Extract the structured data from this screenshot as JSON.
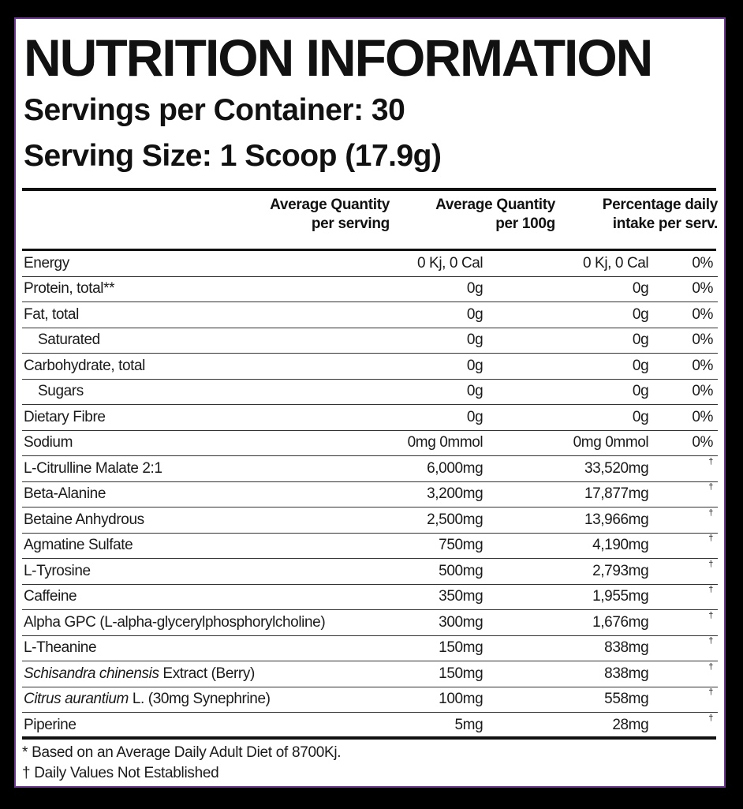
{
  "title": "NUTRITION INFORMATION",
  "servings_per_container": "Servings per Container: 30",
  "serving_size": "Serving Size: 1 Scoop (17.9g)",
  "headers": {
    "col1_line1": "Average Quantity",
    "col1_line2": "per serving",
    "col2_line1": "Average Quantity",
    "col2_line2": "per 100g",
    "col3_line1": "Percentage daily",
    "col3_line2": "intake per serv."
  },
  "rows": [
    {
      "name": "Energy",
      "per_serving": "0 Kj, 0 Cal",
      "per_100g": "0 Kj, 0 Cal",
      "daily": "0%"
    },
    {
      "name": "Protein, total**",
      "per_serving": "0g",
      "per_100g": "0g",
      "daily": "0%"
    },
    {
      "name": "Fat, total",
      "per_serving": "0g",
      "per_100g": "0g",
      "daily": "0%"
    },
    {
      "name": "Saturated",
      "per_serving": "0g",
      "per_100g": "0g",
      "daily": "0%",
      "indent": true
    },
    {
      "name": "Carbohydrate, total",
      "per_serving": "0g",
      "per_100g": "0g",
      "daily": "0%"
    },
    {
      "name": "Sugars",
      "per_serving": "0g",
      "per_100g": "0g",
      "daily": "0%",
      "indent": true
    },
    {
      "name": "Dietary Fibre",
      "per_serving": "0g",
      "per_100g": "0g",
      "daily": "0%"
    },
    {
      "name": "Sodium",
      "per_serving": "0mg 0mmol",
      "per_100g": "0mg 0mmol",
      "daily": "0%"
    },
    {
      "name": "L-Citrulline Malate 2:1",
      "per_serving": "6,000mg",
      "per_100g": "33,520mg",
      "daily": "†"
    },
    {
      "name": "Beta-Alanine",
      "per_serving": "3,200mg",
      "per_100g": "17,877mg",
      "daily": "†"
    },
    {
      "name": "Betaine Anhydrous",
      "per_serving": "2,500mg",
      "per_100g": "13,966mg",
      "daily": "†"
    },
    {
      "name": "Agmatine Sulfate",
      "per_serving": "750mg",
      "per_100g": "4,190mg",
      "daily": "†"
    },
    {
      "name": "L-Tyrosine",
      "per_serving": "500mg",
      "per_100g": "2,793mg",
      "daily": "†"
    },
    {
      "name": "Caffeine",
      "per_serving": "350mg",
      "per_100g": "1,955mg",
      "daily": "†"
    },
    {
      "name": "Alpha GPC (L-alpha-glycerylphosphorylcholine)",
      "per_serving": "300mg",
      "per_100g": "1,676mg",
      "daily": "†"
    },
    {
      "name": "L-Theanine",
      "per_serving": "150mg",
      "per_100g": "838mg",
      "daily": "†"
    },
    {
      "name_italic": "Schisandra chinensis",
      "name_rest": " Extract (Berry)",
      "per_serving": "150mg",
      "per_100g": "838mg",
      "daily": "†"
    },
    {
      "name_italic": "Citrus aurantium",
      "name_rest": " L. (30mg Synephrine)",
      "per_serving": "100mg",
      "per_100g": "558mg",
      "daily": "†"
    },
    {
      "name": "Piperine",
      "per_serving": "5mg",
      "per_100g": "28mg",
      "daily": "†"
    }
  ],
  "footnotes": {
    "line1": "* Based on an Average Daily Adult Diet of 8700Kj.",
    "line2": "† Daily Values Not Established"
  },
  "colors": {
    "background": "#000000",
    "panel": "#ffffff",
    "border": "#6b3a8c",
    "text": "#111111"
  }
}
